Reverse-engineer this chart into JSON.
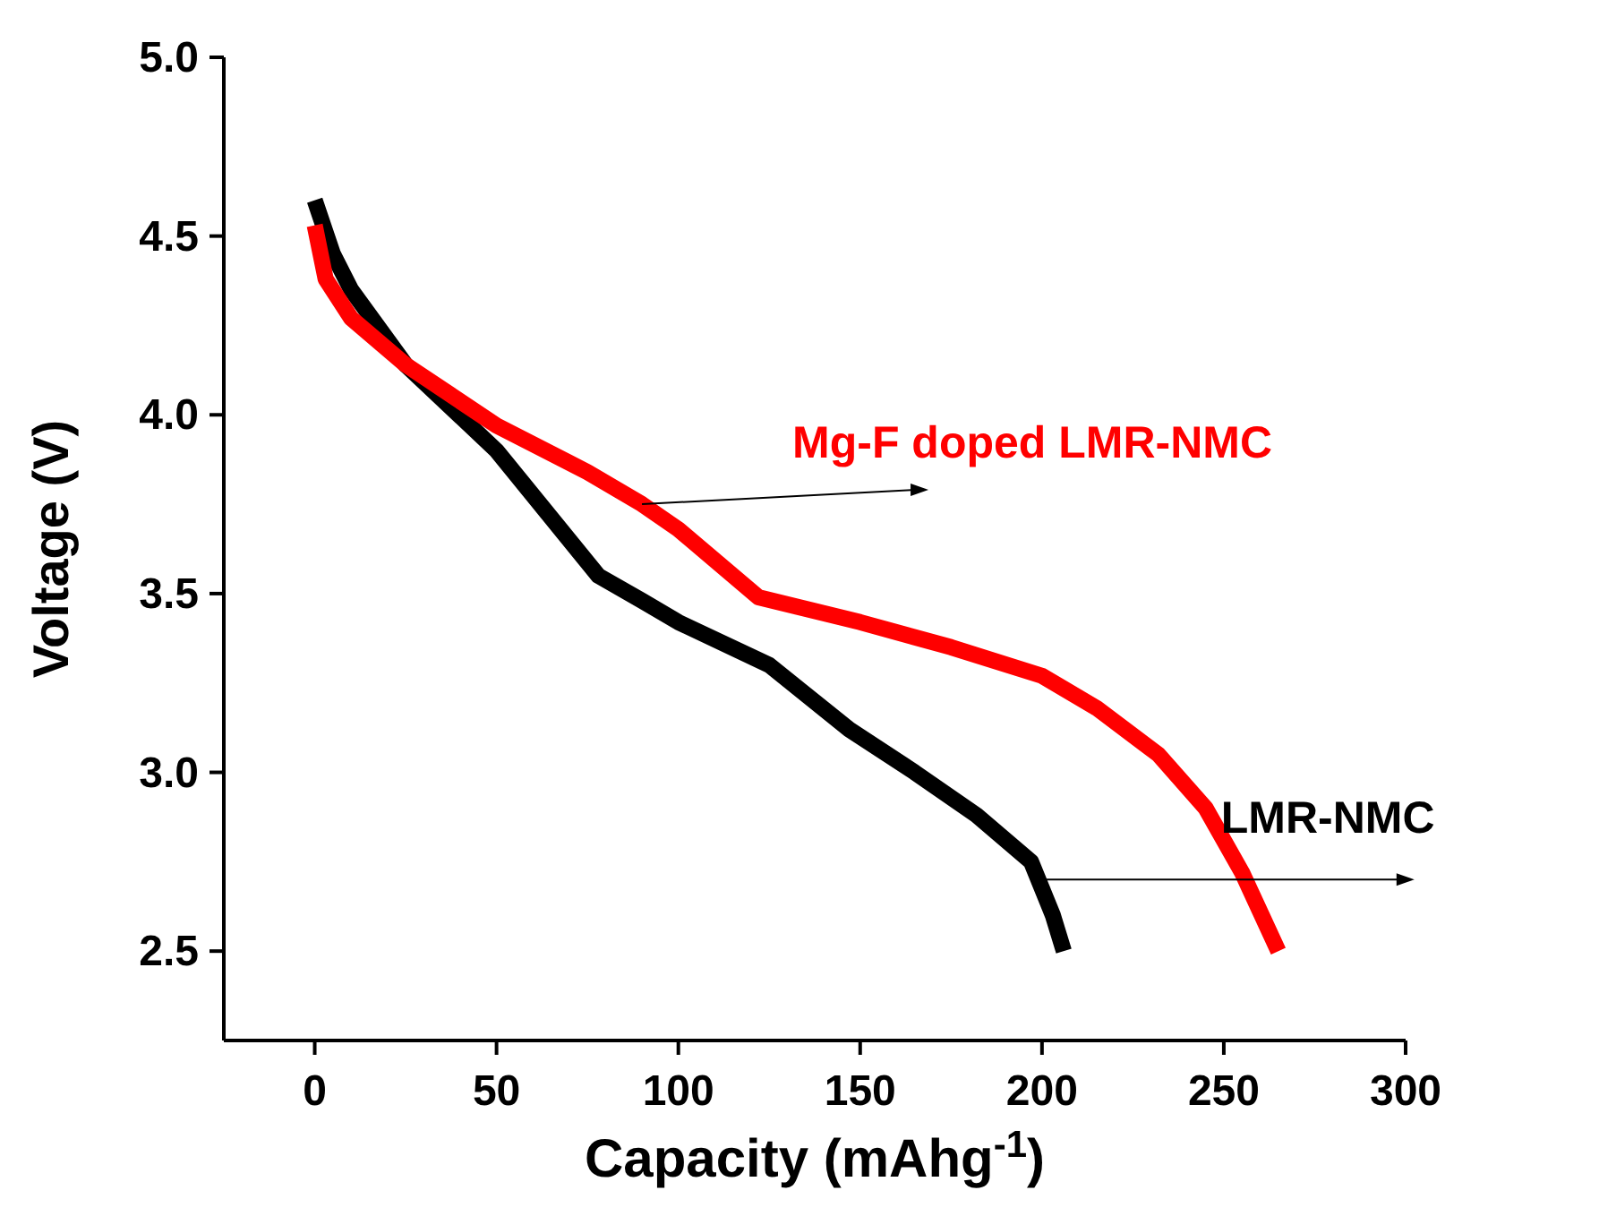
{
  "chart_data": {
    "type": "line",
    "xlabel": "Capacity (mAhg$^{-1}$)",
    "ylabel": "Voltage (V)",
    "xlim": [
      -25,
      300
    ],
    "ylim": [
      2.25,
      5.0
    ],
    "xticks": [
      0,
      50,
      100,
      150,
      200,
      250,
      300
    ],
    "yticks": [
      {
        "value": 2.5,
        "label": "2.5"
      },
      {
        "value": 3.0,
        "label": "3.0"
      },
      {
        "value": 3.5,
        "label": "3.5"
      },
      {
        "value": 4.0,
        "label": "4.0"
      },
      {
        "value": 4.5,
        "label": "4.5"
      },
      {
        "value": 5.0,
        "label": "5.0"
      }
    ],
    "grid": false,
    "marker": "none",
    "line_style": "solid",
    "series": [
      {
        "color": "#000000",
        "x": [
          0,
          5,
          10,
          25,
          50,
          78,
          90,
          100,
          125,
          147,
          165,
          182,
          197,
          203,
          206
        ],
        "values": [
          4.6,
          4.45,
          4.35,
          4.14,
          3.9,
          3.55,
          3.48,
          3.42,
          3.3,
          3.12,
          3.0,
          2.88,
          2.75,
          2.6,
          2.5
        ]
      },
      {
        "color": "#ff0000",
        "x": [
          0,
          3,
          10,
          25,
          50,
          75,
          90,
          100,
          122,
          150,
          175,
          200,
          215,
          232,
          245,
          255,
          265
        ],
        "values": [
          4.53,
          4.38,
          4.27,
          4.14,
          3.97,
          3.84,
          3.75,
          3.68,
          3.49,
          3.42,
          3.35,
          3.27,
          3.18,
          3.05,
          2.9,
          2.72,
          2.5
        ]
      }
    ],
    "annotations": [
      {
        "text": "Mg-F doped LMR-NMC",
        "x": 90,
        "y": 3.75
      },
      {
        "text": "LMR-NMC",
        "x": 199,
        "y": 2.7
      }
    ]
  }
}
